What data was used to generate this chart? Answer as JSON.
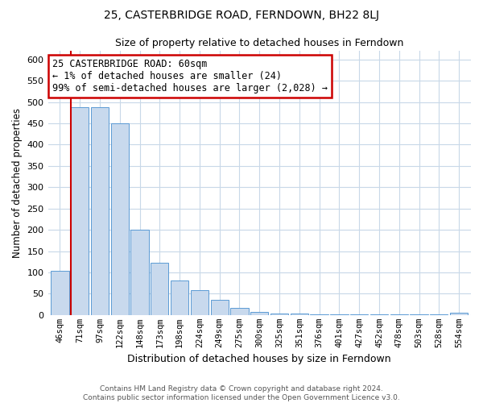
{
  "title": "25, CASTERBRIDGE ROAD, FERNDOWN, BH22 8LJ",
  "subtitle": "Size of property relative to detached houses in Ferndown",
  "xlabel": "Distribution of detached houses by size in Ferndown",
  "ylabel": "Number of detached properties",
  "bar_labels": [
    "46sqm",
    "71sqm",
    "97sqm",
    "122sqm",
    "148sqm",
    "173sqm",
    "198sqm",
    "224sqm",
    "249sqm",
    "275sqm",
    "300sqm",
    "325sqm",
    "351sqm",
    "376sqm",
    "401sqm",
    "427sqm",
    "452sqm",
    "478sqm",
    "503sqm",
    "528sqm",
    "554sqm"
  ],
  "bar_values": [
    103,
    487,
    487,
    450,
    200,
    122,
    82,
    58,
    35,
    16,
    8,
    4,
    3,
    2,
    2,
    1,
    1,
    1,
    1,
    1,
    5
  ],
  "bar_color": "#c8d9ed",
  "bar_edge_color": "#5b9bd5",
  "property_line_x": 0,
  "ylim": [
    0,
    620
  ],
  "yticks": [
    0,
    50,
    100,
    150,
    200,
    250,
    300,
    350,
    400,
    450,
    500,
    550,
    600
  ],
  "annotation_text_line1": "25 CASTERBRIDGE ROAD: 60sqm",
  "annotation_text_line2": "← 1% of detached houses are smaller (24)",
  "annotation_text_line3": "99% of semi-detached houses are larger (2,028) →",
  "footer_line1": "Contains HM Land Registry data © Crown copyright and database right 2024.",
  "footer_line2": "Contains public sector information licensed under the Open Government Licence v3.0.",
  "bg_color": "#ffffff",
  "grid_color": "#c8d8e8",
  "annotation_box_color": "#ffffff",
  "annotation_box_edge": "#cc0000",
  "property_line_color": "#cc0000"
}
